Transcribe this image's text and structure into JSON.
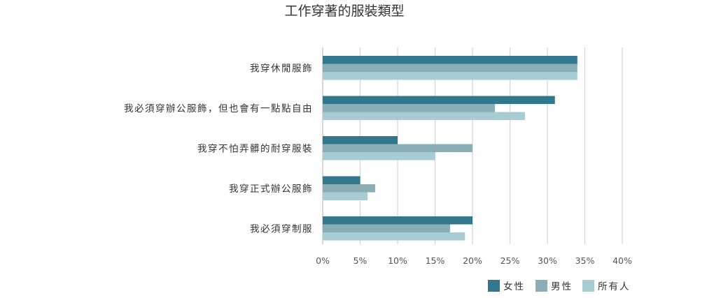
{
  "chart_data": {
    "type": "bar",
    "orientation": "horizontal",
    "title": "工作穿著的服裝類型",
    "categories": [
      "我穿休閒服飾",
      "我必須穿辦公服飾，但也會有一點點自由",
      "我穿不怕弄髒的耐穿服裝",
      "我穿正式辦公服飾",
      "我必須穿制服"
    ],
    "series": [
      {
        "name": "女性",
        "color": "#31788f",
        "values": [
          34,
          31,
          10,
          5,
          20
        ]
      },
      {
        "name": "男性",
        "color": "#8aaeb5",
        "values": [
          34,
          23,
          20,
          7,
          17
        ]
      },
      {
        "name": "所有人",
        "color": "#a8ccd3",
        "values": [
          34,
          27,
          15,
          6,
          19
        ]
      }
    ],
    "xlim": [
      0,
      40
    ],
    "xticks": [
      "0%",
      "5%",
      "10%",
      "15%",
      "20%",
      "25%",
      "30%",
      "35%",
      "40%"
    ],
    "grid": true,
    "legend_position": "bottom-right"
  }
}
